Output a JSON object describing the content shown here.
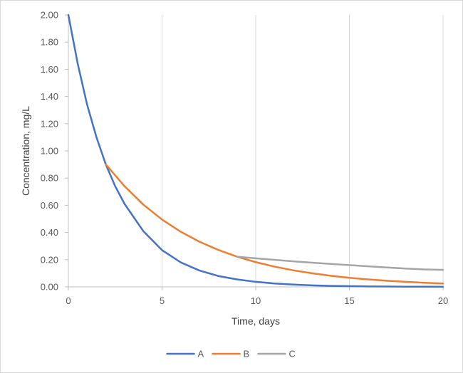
{
  "chart_data": {
    "type": "line",
    "title": "",
    "xlabel": "Time, days",
    "ylabel": "Concentration, mg/L",
    "xlim": [
      0,
      20
    ],
    "ylim": [
      0,
      2
    ],
    "x_ticks": [
      0,
      5,
      10,
      15,
      20
    ],
    "y_ticks": [
      0,
      0.2,
      0.4,
      0.6,
      0.8,
      1.0,
      1.2,
      1.4,
      1.6,
      1.8,
      2.0
    ],
    "x_tick_labels": [
      "0",
      "5",
      "10",
      "15",
      "20"
    ],
    "y_tick_labels": [
      "0.00",
      "0.20",
      "0.40",
      "0.60",
      "0.80",
      "1.00",
      "1.20",
      "1.40",
      "1.60",
      "1.80",
      "2.00"
    ],
    "grid": "vertical",
    "legend_position": "bottom",
    "series": [
      {
        "name": "A",
        "color": "#4472c4",
        "x": [
          0,
          0.5,
          1,
          1.5,
          2,
          2.5,
          3,
          4,
          5,
          6,
          7,
          8,
          9,
          10,
          11,
          12,
          13,
          14,
          15,
          16,
          17,
          18,
          19,
          20
        ],
        "y": [
          2.0,
          1.64,
          1.34,
          1.1,
          0.9,
          0.74,
          0.61,
          0.41,
          0.27,
          0.18,
          0.12,
          0.08,
          0.055,
          0.037,
          0.025,
          0.017,
          0.011,
          0.0075,
          0.005,
          0.0034,
          0.0023,
          0.0015,
          0.001,
          0.0007
        ]
      },
      {
        "name": "B",
        "color": "#ed7d31",
        "x": [
          2,
          3,
          4,
          5,
          6,
          7,
          8,
          9,
          10,
          11,
          12,
          13,
          14,
          15,
          16,
          17,
          18,
          19,
          20
        ],
        "y": [
          0.9,
          0.74,
          0.605,
          0.495,
          0.405,
          0.332,
          0.272,
          0.222,
          0.182,
          0.149,
          0.122,
          0.1,
          0.082,
          0.067,
          0.055,
          0.045,
          0.037,
          0.03,
          0.025
        ]
      },
      {
        "name": "C",
        "color": "#a5a5a5",
        "x": [
          9,
          10,
          11,
          12,
          13,
          14,
          15,
          16,
          17,
          18,
          19,
          20
        ],
        "y": [
          0.222,
          0.21,
          0.199,
          0.188,
          0.178,
          0.169,
          0.16,
          0.151,
          0.143,
          0.135,
          0.128,
          0.125
        ]
      }
    ]
  }
}
